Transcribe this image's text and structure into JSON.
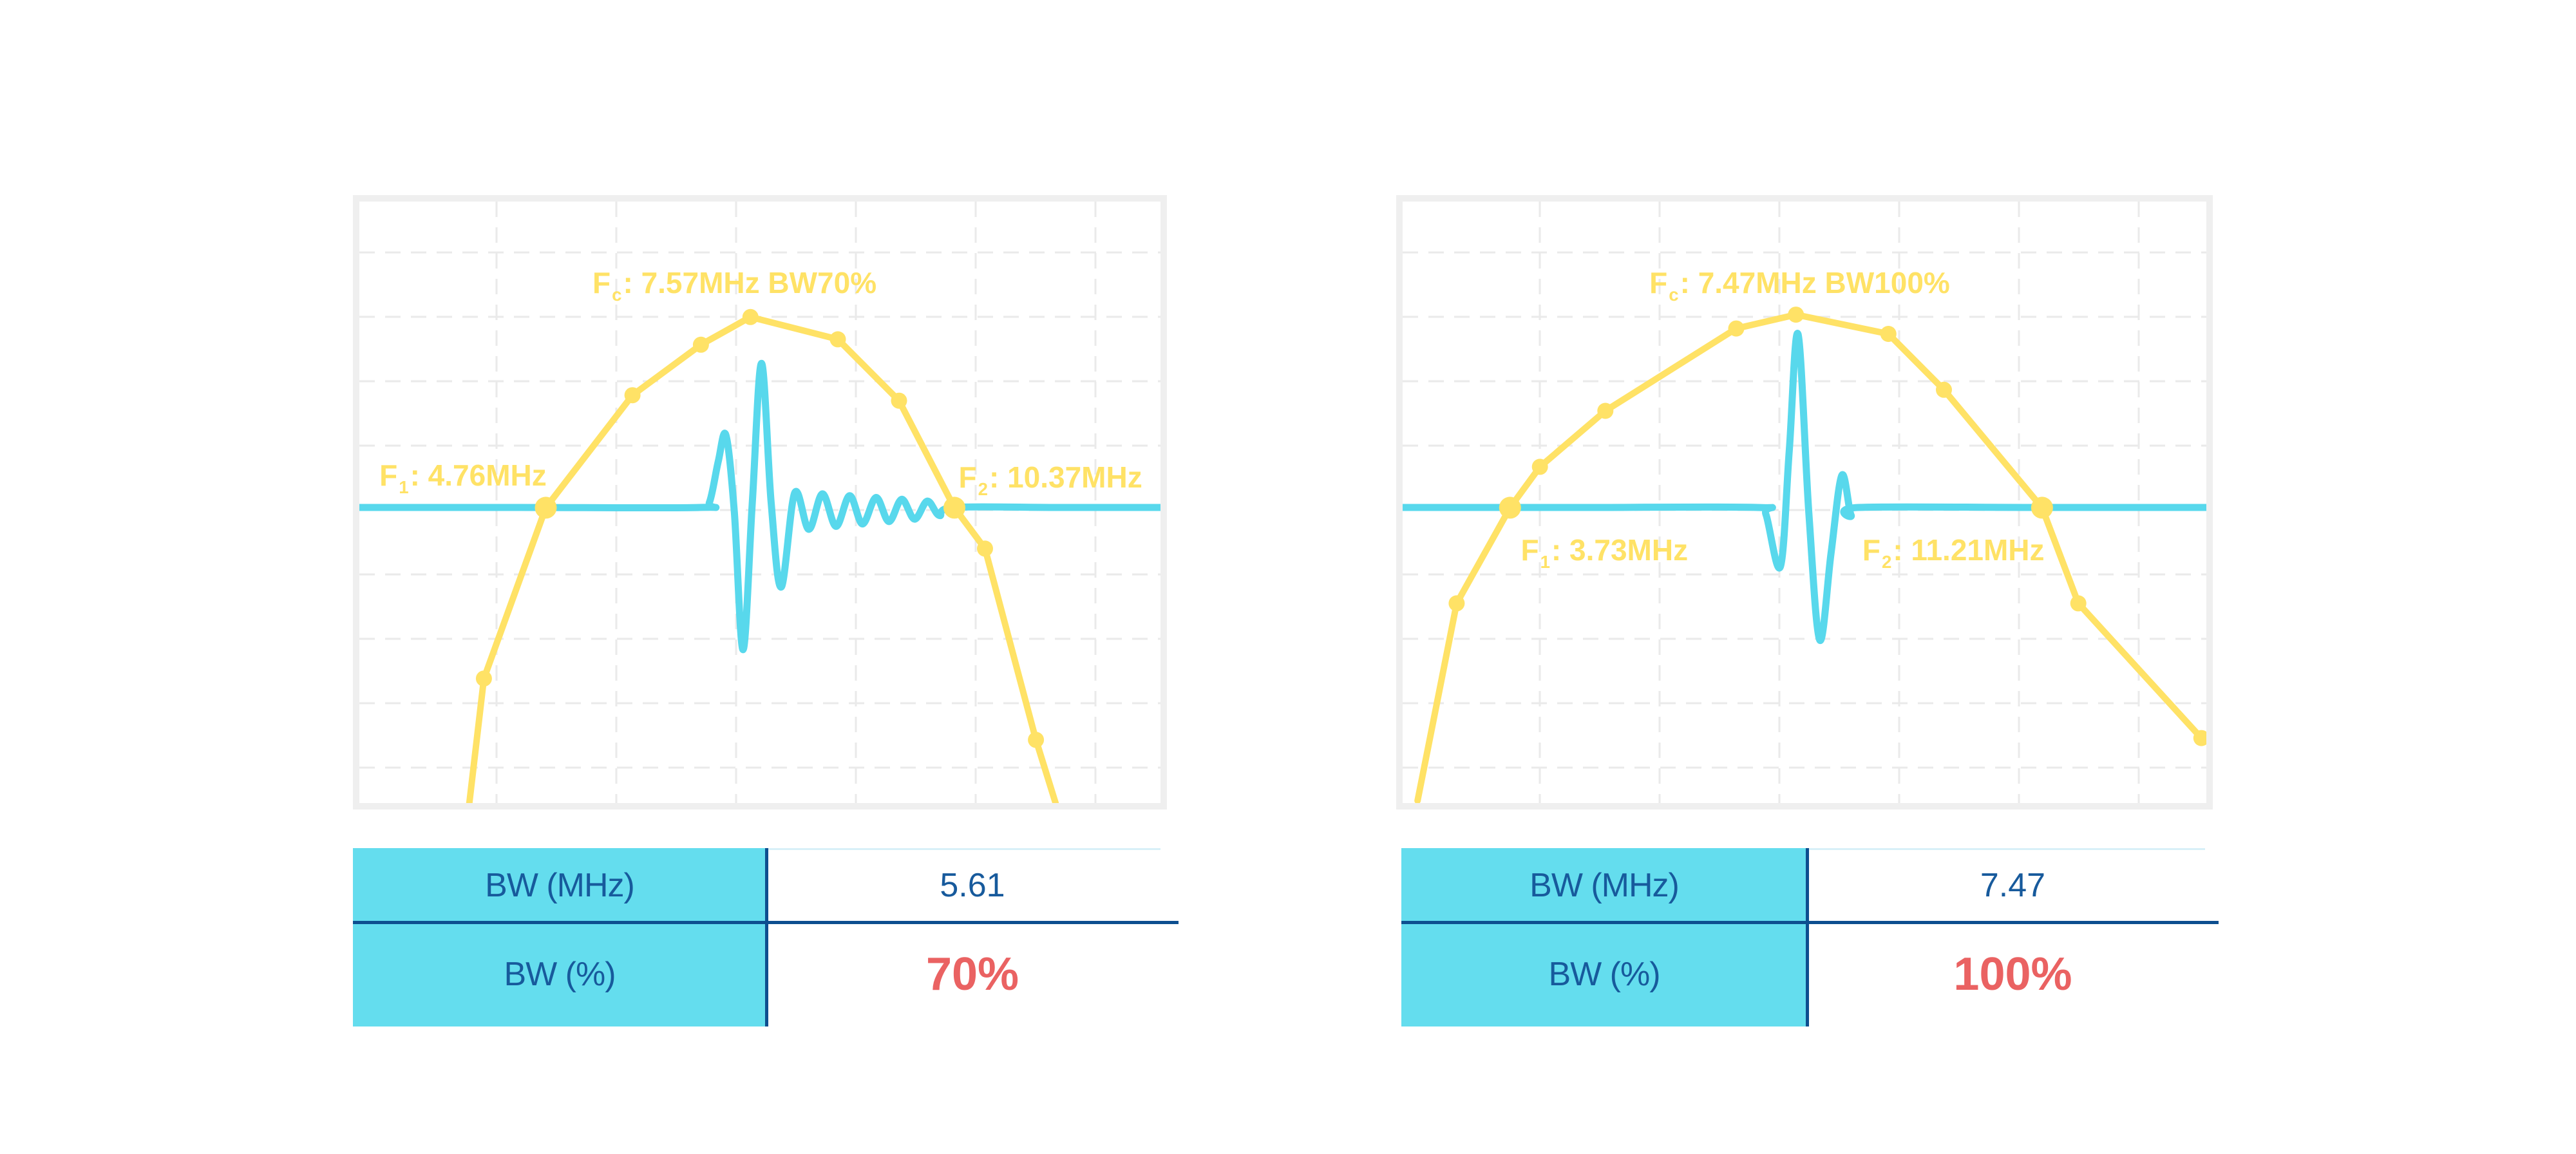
{
  "palette": {
    "yellow": "#FFE266",
    "cyan": "#58D8EC",
    "table_cyan": "#64DDEE",
    "navy": "#175A9C",
    "rule_navy": "#0D4E8F",
    "red": "#EA6262",
    "grid": "#EAEAEA",
    "frame": "#EFEFEF",
    "light_line": "#D8F0F8"
  },
  "chart_data": [
    {
      "type": "line",
      "name": "pulse-spectrum-bw70",
      "xlabel": "",
      "ylabel": "",
      "x_range_mhz": [
        2.2,
        13.2
      ],
      "center_freq_mhz": 7.57,
      "f1_mhz": 4.76,
      "f2_mhz": 10.37,
      "bw_mhz": 5.61,
      "bw_pct": 70,
      "threshold_level": 0.491,
      "grid": "dashed",
      "legend_position": "none",
      "annotations": {
        "fc": {
          "f": "F",
          "sub": "c",
          "rest": ": 7.57MHz BW70%",
          "x_pct": 29.1,
          "y_pct": 10.8
        },
        "f1": {
          "f": "F",
          "sub": "1",
          "rest": ": 4.76MHz",
          "x_pct": 2.5,
          "y_pct": 42.8
        },
        "f2": {
          "f": "F",
          "sub": "2",
          "rest": ": 10.37MHz",
          "x_pct": 74.8,
          "y_pct": 43.1
        }
      },
      "spectrum": [
        {
          "f": 3.71,
          "a": 0.0,
          "m": "none"
        },
        {
          "f": 3.91,
          "a": 0.207,
          "m": "dot"
        },
        {
          "f": 4.76,
          "a": 0.491,
          "m": "big"
        },
        {
          "f": 5.95,
          "a": 0.678,
          "m": "dot"
        },
        {
          "f": 6.89,
          "a": 0.762,
          "m": "dot"
        },
        {
          "f": 7.57,
          "a": 0.808,
          "m": "dot"
        },
        {
          "f": 8.77,
          "a": 0.771,
          "m": "dot"
        },
        {
          "f": 9.61,
          "a": 0.669,
          "m": "dot"
        },
        {
          "f": 10.37,
          "a": 0.491,
          "m": "big"
        },
        {
          "f": 10.79,
          "a": 0.423,
          "m": "dot"
        },
        {
          "f": 11.49,
          "a": 0.105,
          "m": "dot"
        },
        {
          "f": 11.76,
          "a": 0.0,
          "m": "none"
        }
      ],
      "pulse": [
        [
          0.0,
          0.5086
        ],
        [
          0.2,
          0.5086
        ],
        [
          0.425,
          0.5086
        ],
        [
          0.437,
          0.5
        ],
        [
          0.448,
          0.432
        ],
        [
          0.4575,
          0.388
        ],
        [
          0.468,
          0.515
        ],
        [
          0.479,
          0.745
        ],
        [
          0.4905,
          0.5
        ],
        [
          0.502,
          0.269
        ],
        [
          0.514,
          0.5
        ],
        [
          0.5265,
          0.641
        ],
        [
          0.5435,
          0.484
        ],
        [
          0.561,
          0.545
        ],
        [
          0.578,
          0.486
        ],
        [
          0.595,
          0.54
        ],
        [
          0.612,
          0.489
        ],
        [
          0.628,
          0.536
        ],
        [
          0.645,
          0.492
        ],
        [
          0.661,
          0.532
        ],
        [
          0.677,
          0.495
        ],
        [
          0.693,
          0.528
        ],
        [
          0.709,
          0.498
        ],
        [
          0.724,
          0.522
        ],
        [
          0.742,
          0.5086
        ],
        [
          0.87,
          0.5086
        ],
        [
          1.0,
          0.5086
        ]
      ],
      "table": {
        "rows": [
          {
            "label": "BW (MHz)",
            "value": "5.61"
          },
          {
            "label": "BW (%)",
            "value": "70%"
          }
        ]
      }
    },
    {
      "type": "line",
      "name": "pulse-spectrum-bw100",
      "xlabel": "",
      "ylabel": "",
      "x_range_mhz": [
        2.22,
        13.52
      ],
      "center_freq_mhz": 7.47,
      "f1_mhz": 3.73,
      "f2_mhz": 11.21,
      "bw_mhz": 7.47,
      "bw_pct": 100,
      "threshold_level": 0.491,
      "grid": "dashed",
      "legend_position": "none",
      "annotations": {
        "fc": {
          "f": "F",
          "sub": "c",
          "rest": ": 7.47MHz BW100%",
          "x_pct": 30.7,
          "y_pct": 10.8
        },
        "f1": {
          "f": "F",
          "sub": "1",
          "rest": ": 3.73MHz",
          "x_pct": 14.7,
          "y_pct": 55.2
        },
        "f2": {
          "f": "F",
          "sub": "2",
          "rest": ": 11.21MHz",
          "x_pct": 57.2,
          "y_pct": 55.2
        }
      },
      "spectrum": [
        {
          "f": 2.43,
          "a": 0.004,
          "m": "none"
        },
        {
          "f": 2.98,
          "a": 0.332,
          "m": "dot"
        },
        {
          "f": 3.73,
          "a": 0.491,
          "m": "big"
        },
        {
          "f": 4.15,
          "a": 0.559,
          "m": "dot"
        },
        {
          "f": 5.07,
          "a": 0.652,
          "m": "dot"
        },
        {
          "f": 6.91,
          "a": 0.789,
          "m": "dot"
        },
        {
          "f": 7.75,
          "a": 0.812,
          "m": "dot"
        },
        {
          "f": 9.05,
          "a": 0.78,
          "m": "dot"
        },
        {
          "f": 9.83,
          "a": 0.687,
          "m": "dot"
        },
        {
          "f": 11.21,
          "a": 0.491,
          "m": "big"
        },
        {
          "f": 11.72,
          "a": 0.332,
          "m": "dot"
        },
        {
          "f": 13.45,
          "a": 0.108,
          "m": "dot"
        }
      ],
      "pulse": [
        [
          0.0,
          0.5086
        ],
        [
          0.22,
          0.5086
        ],
        [
          0.441,
          0.5086
        ],
        [
          0.452,
          0.52
        ],
        [
          0.47,
          0.607
        ],
        [
          0.481,
          0.415
        ],
        [
          0.492,
          0.2205
        ],
        [
          0.5055,
          0.52
        ],
        [
          0.519,
          0.729
        ],
        [
          0.533,
          0.585
        ],
        [
          0.5465,
          0.455
        ],
        [
          0.558,
          0.5214
        ],
        [
          0.567,
          0.5086
        ],
        [
          0.78,
          0.5086
        ],
        [
          1.0,
          0.5086
        ]
      ],
      "table": {
        "rows": [
          {
            "label": "BW (MHz)",
            "value": "7.47"
          },
          {
            "label": "BW (%)",
            "value": "100%"
          }
        ]
      }
    }
  ]
}
